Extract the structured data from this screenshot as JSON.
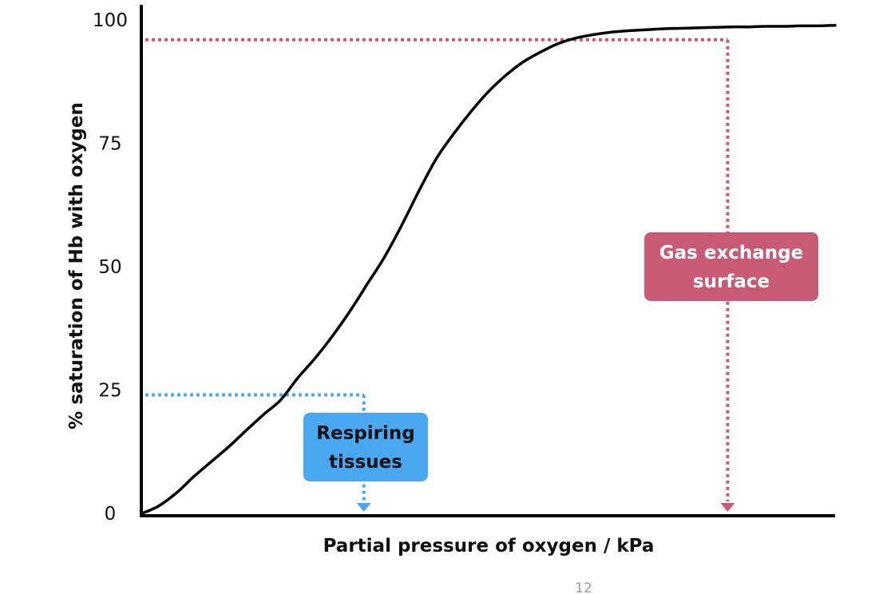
{
  "chart_data": {
    "type": "line",
    "title": "",
    "xlabel": "Partial pressure of oxygen / kPa",
    "ylabel": "% saturation of Hb with oxygen",
    "ylim": [
      0,
      100
    ],
    "yticks": [
      "0",
      "25",
      "50",
      "75",
      "100"
    ],
    "xticks": [],
    "grid": false,
    "legend": "none",
    "series": [
      {
        "color": "#000000",
        "x": [
          0,
          2.4,
          5,
          7.5,
          10,
          12.5,
          15,
          17.5,
          20,
          22.5,
          25,
          27.5,
          30,
          32.5,
          35,
          37.5,
          40,
          42.5,
          45,
          47.5,
          50,
          52.5,
          55,
          57.5,
          60,
          62.5,
          65,
          67.5,
          70,
          72.5,
          75,
          77.5,
          80,
          82.5,
          85,
          87.5,
          90,
          92.5,
          95,
          97.5,
          100
        ],
        "y": [
          0,
          1.5,
          4.2,
          7.5,
          10.5,
          13.5,
          16.8,
          20,
          23,
          27.5,
          31.5,
          36,
          41,
          46.5,
          52,
          58.5,
          65.5,
          72,
          77,
          81.5,
          85.5,
          88.8,
          91.5,
          93.5,
          95.2,
          96.3,
          97,
          97.5,
          97.8,
          98,
          98.2,
          98.3,
          98.4,
          98.5,
          98.6,
          98.6,
          98.7,
          98.7,
          98.8,
          98.8,
          98.9
        ]
      }
    ],
    "annotations": [
      {
        "label_lines": [
          "Respiring",
          "tissues"
        ],
        "x": 32,
        "y": 24,
        "color": "#4aa8f0",
        "text_color": "#111111"
      },
      {
        "label_lines": [
          "Gas exchange",
          "surface"
        ],
        "x": 84.5,
        "y": 96,
        "color": "#c85a74",
        "text_color": "#ffffff"
      }
    ]
  },
  "page_number": "12"
}
